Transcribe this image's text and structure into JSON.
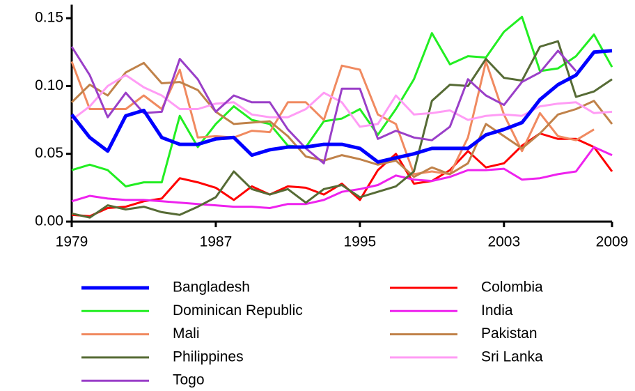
{
  "chart_data": {
    "type": "line",
    "x": [
      1979,
      1980,
      1981,
      1982,
      1983,
      1984,
      1985,
      1986,
      1987,
      1988,
      1989,
      1990,
      1991,
      1992,
      1993,
      1994,
      1995,
      1996,
      1997,
      1998,
      1999,
      2000,
      2001,
      2002,
      2003,
      2004,
      2005,
      2006,
      2007,
      2008,
      2009
    ],
    "xlim": [
      1979,
      2009
    ],
    "xticks": [
      1979,
      1987,
      1995,
      2003,
      2009
    ],
    "ylim": [
      0,
      0.16
    ],
    "yticks": [
      {
        "value": 0,
        "label": "0.00"
      },
      {
        "value": 0.05,
        "label": "0.05"
      },
      {
        "value": 0.1,
        "label": "0.10"
      },
      {
        "value": 0.15,
        "label": "0.15"
      }
    ],
    "series": [
      {
        "name": "Bangladesh",
        "color": "#0000ff",
        "line_width": 5,
        "values": [
          0.079,
          0.062,
          0.052,
          0.078,
          0.082,
          0.062,
          0.057,
          0.057,
          0.061,
          0.062,
          0.049,
          0.053,
          0.055,
          0.055,
          0.057,
          0.057,
          0.054,
          0.044,
          0.047,
          0.05,
          0.054,
          0.054,
          0.054,
          0.064,
          0.068,
          0.073,
          0.09,
          0.101,
          0.108,
          0.125,
          0.126
        ]
      },
      {
        "name": "Colombia",
        "color": "#ff0000",
        "line_width": 3,
        "values": [
          0.005,
          0.004,
          0.01,
          0.011,
          0.015,
          0.017,
          0.032,
          0.029,
          0.025,
          0.016,
          0.026,
          0.02,
          0.026,
          0.025,
          0.02,
          0.028,
          0.016,
          0.038,
          0.05,
          0.028,
          0.03,
          0.038,
          0.052,
          0.04,
          0.043,
          0.056,
          0.065,
          0.061,
          0.061,
          0.055,
          0.037
        ]
      },
      {
        "name": "Dominican Republic",
        "color": "#22ee22",
        "line_width": 3,
        "values": [
          0.038,
          0.042,
          0.038,
          0.026,
          0.029,
          0.029,
          0.078,
          0.055,
          0.072,
          0.085,
          0.075,
          0.072,
          0.056,
          0.055,
          0.074,
          0.076,
          0.083,
          0.064,
          0.083,
          0.105,
          0.139,
          0.116,
          0.122,
          0.121,
          0.14,
          0.151,
          0.111,
          0.113,
          0.122,
          0.138,
          0.114
        ]
      },
      {
        "name": "India",
        "color": "#ee22ee",
        "line_width": 3,
        "values": [
          0.015,
          0.019,
          0.017,
          0.016,
          0.016,
          0.015,
          0.014,
          0.013,
          0.012,
          0.011,
          0.011,
          0.01,
          0.013,
          0.013,
          0.016,
          0.022,
          0.024,
          0.027,
          0.034,
          0.031,
          0.03,
          0.033,
          0.038,
          0.038,
          0.039,
          0.031,
          0.032,
          0.035,
          0.037,
          0.055,
          0.049
        ]
      },
      {
        "name": "Mali",
        "color": "#f08a60",
        "line_width": 3,
        "values": [
          0.118,
          0.083,
          0.083,
          0.083,
          0.093,
          0.083,
          0.112,
          0.062,
          0.063,
          0.062,
          0.067,
          0.066,
          0.088,
          0.088,
          0.075,
          0.115,
          0.112,
          0.079,
          0.072,
          0.035,
          0.037,
          0.035,
          0.062,
          0.118,
          0.079,
          0.052,
          0.08,
          0.063,
          0.06,
          0.068,
          null
        ]
      },
      {
        "name": "Pakistan",
        "color": "#c0824a",
        "line_width": 3,
        "values": [
          0.088,
          0.101,
          0.093,
          0.11,
          0.117,
          0.102,
          0.103,
          0.097,
          0.081,
          0.072,
          0.073,
          0.074,
          0.063,
          0.048,
          0.045,
          0.049,
          0.046,
          0.042,
          0.045,
          0.033,
          0.04,
          0.035,
          0.043,
          0.072,
          0.063,
          0.054,
          0.065,
          0.079,
          0.083,
          0.089,
          0.072
        ]
      },
      {
        "name": "Philippines",
        "color": "#566b35",
        "line_width": 3,
        "values": [
          0.006,
          0.003,
          0.012,
          0.009,
          0.011,
          0.007,
          0.005,
          0.011,
          0.018,
          0.037,
          0.024,
          0.02,
          0.024,
          0.014,
          0.024,
          0.027,
          0.018,
          0.022,
          0.026,
          0.037,
          0.089,
          0.101,
          0.1,
          0.12,
          0.106,
          0.104,
          0.129,
          0.133,
          0.092,
          0.096,
          0.105
        ]
      },
      {
        "name": "Sri Lanka",
        "color": "#ff9cf5",
        "line_width": 3,
        "values": [
          0.075,
          0.085,
          0.1,
          0.108,
          0.099,
          0.093,
          0.083,
          0.083,
          0.087,
          0.088,
          0.079,
          0.077,
          0.077,
          0.083,
          0.095,
          0.088,
          0.07,
          0.072,
          0.093,
          0.079,
          0.08,
          0.082,
          0.075,
          0.078,
          0.079,
          0.078,
          0.085,
          0.087,
          0.088,
          0.08,
          0.081
        ]
      },
      {
        "name": "Togo",
        "color": "#9a3fc8",
        "line_width": 3,
        "values": [
          0.129,
          0.108,
          0.077,
          0.095,
          0.08,
          0.081,
          0.12,
          0.105,
          0.081,
          0.093,
          0.088,
          0.088,
          0.068,
          0.054,
          0.043,
          0.098,
          0.098,
          0.061,
          0.067,
          0.062,
          0.06,
          0.07,
          0.105,
          0.093,
          0.086,
          0.103,
          0.11,
          0.126,
          0.111,
          null,
          null
        ]
      }
    ]
  }
}
